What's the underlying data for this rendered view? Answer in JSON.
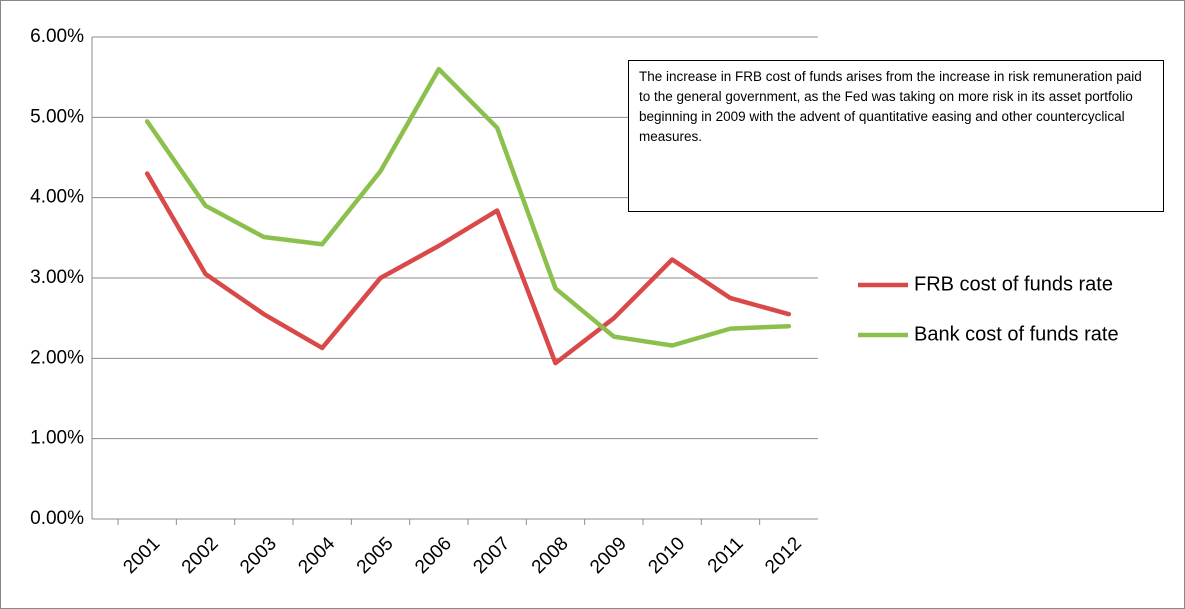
{
  "chart_data": {
    "type": "line",
    "categories": [
      "2001",
      "2002",
      "2003",
      "2004",
      "2005",
      "2006",
      "2007",
      "2008",
      "2009",
      "2010",
      "2011",
      "2012"
    ],
    "series": [
      {
        "name": "FRB cost of funds rate",
        "color": "#d9494a",
        "values": [
          4.3,
          3.05,
          2.55,
          2.13,
          3.0,
          3.4,
          3.84,
          1.94,
          2.5,
          3.23,
          2.75,
          2.55
        ]
      },
      {
        "name": "Bank cost of funds rate",
        "color": "#8cc04c",
        "values": [
          4.95,
          3.9,
          3.51,
          3.42,
          4.33,
          5.6,
          4.87,
          2.87,
          2.27,
          2.16,
          2.37,
          2.4
        ]
      }
    ],
    "ylim": [
      0,
      6
    ],
    "yticks": [
      {
        "value": 0,
        "label": "0.00%"
      },
      {
        "value": 1,
        "label": "1.00%"
      },
      {
        "value": 2,
        "label": "2.00%"
      },
      {
        "value": 3,
        "label": "3.00%"
      },
      {
        "value": 4,
        "label": "4.00%"
      },
      {
        "value": 5,
        "label": "5.00%"
      },
      {
        "value": 6,
        "label": "6.00%"
      }
    ],
    "grid": true,
    "legend": "right",
    "annotation": "The increase in FRB cost of funds arises from the increase in risk remuneration paid to the general government, as the Fed was taking on more risk in its asset portfolio beginning in 2009 with the advent of quantitative easing and other countercyclical measures."
  }
}
